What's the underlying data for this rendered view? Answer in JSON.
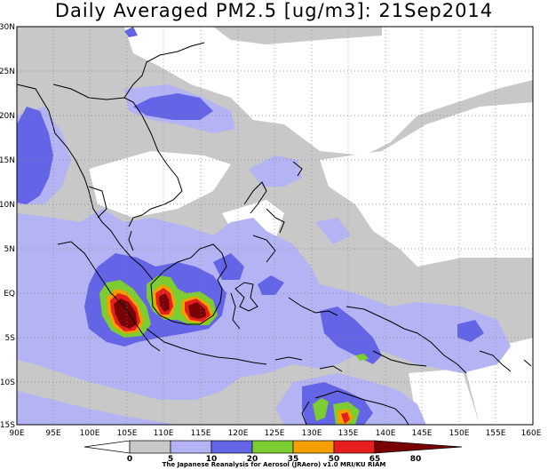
{
  "title": "Daily Averaged PM2.5 [ug/m3]: 21Sep2014",
  "credit": "The Japanese Reanalysis for Aerosol (JRAero) v1.0 MRI/KU RIAM",
  "lat_labels": [
    "30N",
    "25N",
    "20N",
    "15N",
    "10N",
    "5N",
    "EQ",
    "5S",
    "10S",
    "15S"
  ],
  "lon_labels": [
    "90E",
    "95E",
    "100E",
    "105E",
    "110E",
    "115E",
    "120E",
    "125E",
    "130E",
    "135E",
    "140E",
    "145E",
    "150E",
    "155E",
    "160E"
  ],
  "colorbar": {
    "tick_labels": [
      "0",
      "5",
      "10",
      "20",
      "35",
      "50",
      "65",
      "80"
    ],
    "colors": [
      "#ffffff",
      "#c8c8c8",
      "#b4b4f5",
      "#6464e6",
      "#7ccd32",
      "#f5a000",
      "#e61e1e",
      "#780000"
    ]
  }
}
